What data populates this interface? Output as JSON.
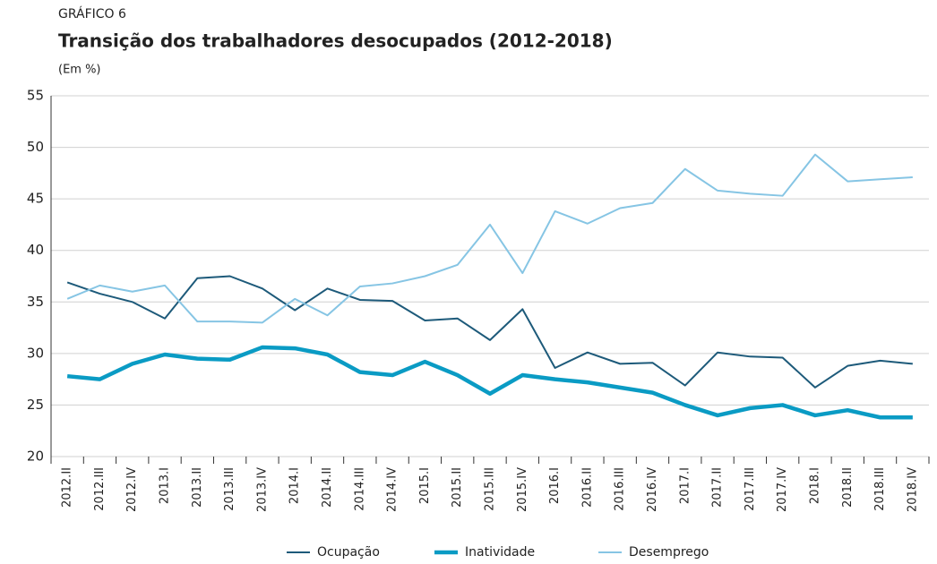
{
  "chart_data": {
    "type": "line",
    "kicker": "GRÁFICO 6",
    "title": "Transição dos trabalhadores desocupados (2012-2018)",
    "subtitle": "(Em %)",
    "categories": [
      "2012.II",
      "2012.III",
      "2012.IV",
      "2013.I",
      "2013.II",
      "2013.III",
      "2013.IV",
      "2014.I",
      "2014.II",
      "2014.III",
      "2014.IV",
      "2015.I",
      "2015.II",
      "2015.III",
      "2015.IV",
      "2016.I",
      "2016.II",
      "2016.III",
      "2016.IV",
      "2017.I",
      "2017.II",
      "2017.III",
      "2017.IV",
      "2018.I",
      "2018.II",
      "2018.III",
      "2018.IV"
    ],
    "series": [
      {
        "name": "Ocupação",
        "color": "#1d5a7a",
        "width": 2,
        "values": [
          36.9,
          35.8,
          35.0,
          33.4,
          37.3,
          37.5,
          36.3,
          34.2,
          36.3,
          35.2,
          35.1,
          33.2,
          33.4,
          31.3,
          34.3,
          28.6,
          30.1,
          29.0,
          29.1,
          26.9,
          30.1,
          29.7,
          29.6,
          26.7,
          28.8,
          29.3,
          29.0
        ]
      },
      {
        "name": "Inatividade",
        "color": "#0a9bc4",
        "width": 4.5,
        "values": [
          27.8,
          27.5,
          29.0,
          29.9,
          29.5,
          29.4,
          30.6,
          30.5,
          29.9,
          28.2,
          27.9,
          29.2,
          27.9,
          26.1,
          27.9,
          27.5,
          27.2,
          26.7,
          26.2,
          25.0,
          24.0,
          24.7,
          25.0,
          24.0,
          24.5,
          23.8,
          23.8
        ]
      },
      {
        "name": "Desemprego",
        "color": "#86c5e4",
        "width": 2,
        "values": [
          35.3,
          36.6,
          36.0,
          36.6,
          33.1,
          33.1,
          33.0,
          35.3,
          33.7,
          36.5,
          36.8,
          37.5,
          38.6,
          42.5,
          37.8,
          43.8,
          42.6,
          44.1,
          44.6,
          47.9,
          45.8,
          45.5,
          45.3,
          49.3,
          46.7,
          46.9,
          47.1
        ]
      }
    ],
    "ylim": [
      20,
      55
    ],
    "yticks": [
      20,
      25,
      30,
      35,
      40,
      45,
      50,
      55
    ],
    "grid": true
  }
}
